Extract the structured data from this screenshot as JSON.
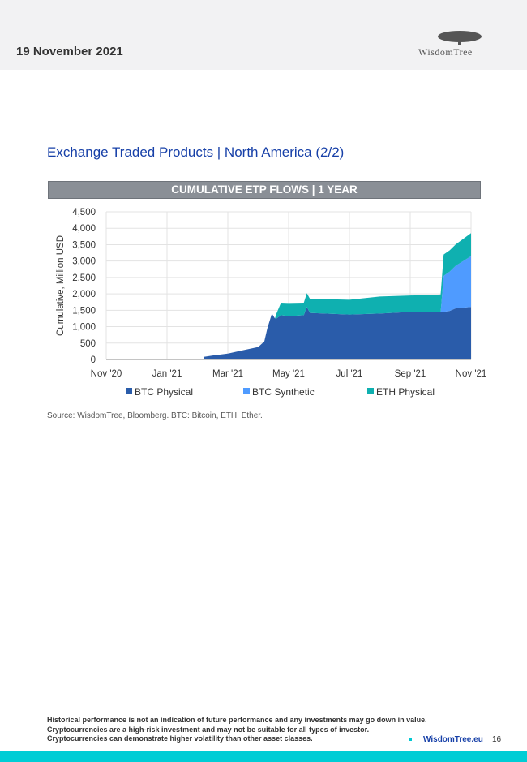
{
  "header": {
    "date": "19 November 2021",
    "logo_text": "WisdomTree"
  },
  "page_title": "Exchange Traded Products | North America (2/2)",
  "chart_data": {
    "type": "area",
    "title": "CUMULATIVE ETP FLOWS | 1 YEAR",
    "xlabel": "",
    "ylabel": "Cumulative, Million USD",
    "ylim": [
      0,
      4500
    ],
    "yticks": [
      "0",
      "500",
      "1,000",
      "1,500",
      "2,000",
      "2,500",
      "3,000",
      "3,500",
      "4,000",
      "4,500"
    ],
    "xticks": [
      "Nov '20",
      "Jan '21",
      "Mar '21",
      "May '21",
      "Jul '21",
      "Sep '21",
      "Nov '21"
    ],
    "x_months_since_nov20": [
      0,
      3.2,
      3.21,
      3.5,
      4,
      4.5,
      5.0,
      5.2,
      5.3,
      5.45,
      5.55,
      5.6,
      5.75,
      6.0,
      6.5,
      6.6,
      6.7,
      8,
      9,
      10,
      11.0,
      11.1,
      11.3,
      11.5,
      12
    ],
    "stacked": true,
    "legend_position": "bottom",
    "series": [
      {
        "name": "BTC Physical",
        "color": "#2a5caa",
        "values": [
          0,
          0,
          80,
          120,
          180,
          280,
          380,
          550,
          950,
          1400,
          1250,
          1250,
          1350,
          1320,
          1350,
          1600,
          1420,
          1370,
          1400,
          1450,
          1440,
          1450,
          1480,
          1560,
          1600
        ]
      },
      {
        "name": "BTC Synthetic",
        "color": "#4f9bff",
        "values": [
          0,
          0,
          0,
          0,
          0,
          0,
          0,
          0,
          0,
          0,
          0,
          0,
          0,
          0,
          0,
          0,
          0,
          0,
          0,
          0,
          0,
          1100,
          1200,
          1300,
          1550
        ]
      },
      {
        "name": "ETH Physical",
        "color": "#0fb0b0",
        "values": [
          0,
          0,
          0,
          0,
          0,
          0,
          0,
          0,
          0,
          0,
          0,
          150,
          380,
          400,
          380,
          420,
          430,
          450,
          520,
          500,
          540,
          650,
          650,
          650,
          700
        ]
      }
    ]
  },
  "source": "Source: WisdomTree, Bloomberg. BTC: Bitcoin, ETH: Ether.",
  "footer": {
    "disclaimer": [
      "Historical performance is not an indication of future performance and any investments may go down in value.",
      "Cryptocurrencies are a high-risk investment and may not be suitable for all types of investor.",
      "Cryptocurrencies can demonstrate higher volatility than other asset classes."
    ],
    "site": "WisdomTree.eu",
    "page_number": "16"
  }
}
